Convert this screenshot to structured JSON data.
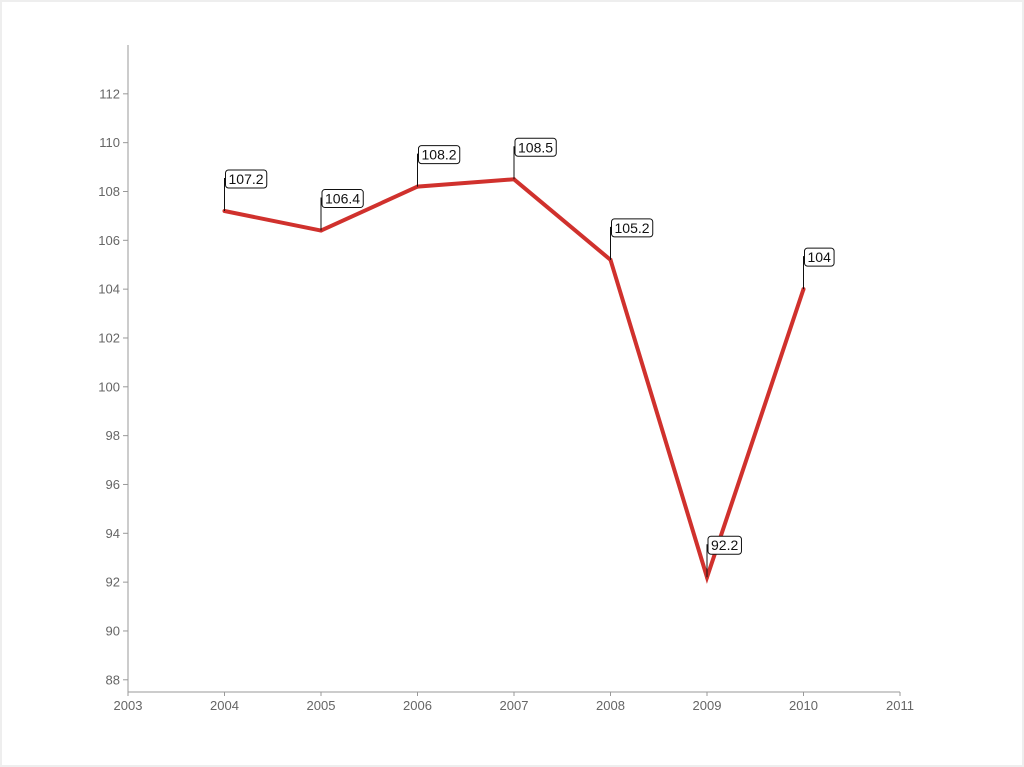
{
  "chart_data": {
    "type": "line",
    "title": "",
    "xlabel": "",
    "ylabel": "",
    "x": [
      2004,
      2005,
      2006,
      2007,
      2008,
      2009,
      2010
    ],
    "series": [
      {
        "values": [
          107.2,
          106.4,
          108.2,
          108.5,
          105.2,
          92.2,
          104
        ],
        "color": "#d0312d"
      }
    ],
    "data_labels": [
      "107.2",
      "106.4",
      "108.2",
      "108.5",
      "105.2",
      "92.2",
      "104"
    ],
    "xlim": [
      2003,
      2011
    ],
    "ylim": [
      87.5,
      114
    ],
    "x_ticks": [
      "2003",
      "2004",
      "2005",
      "2006",
      "2007",
      "2008",
      "2009",
      "2010",
      "2011"
    ],
    "y_ticks": [
      "88",
      "90",
      "92",
      "94",
      "96",
      "98",
      "100",
      "102",
      "104",
      "106",
      "108",
      "110",
      "112"
    ],
    "grid": false,
    "legend": "none"
  }
}
